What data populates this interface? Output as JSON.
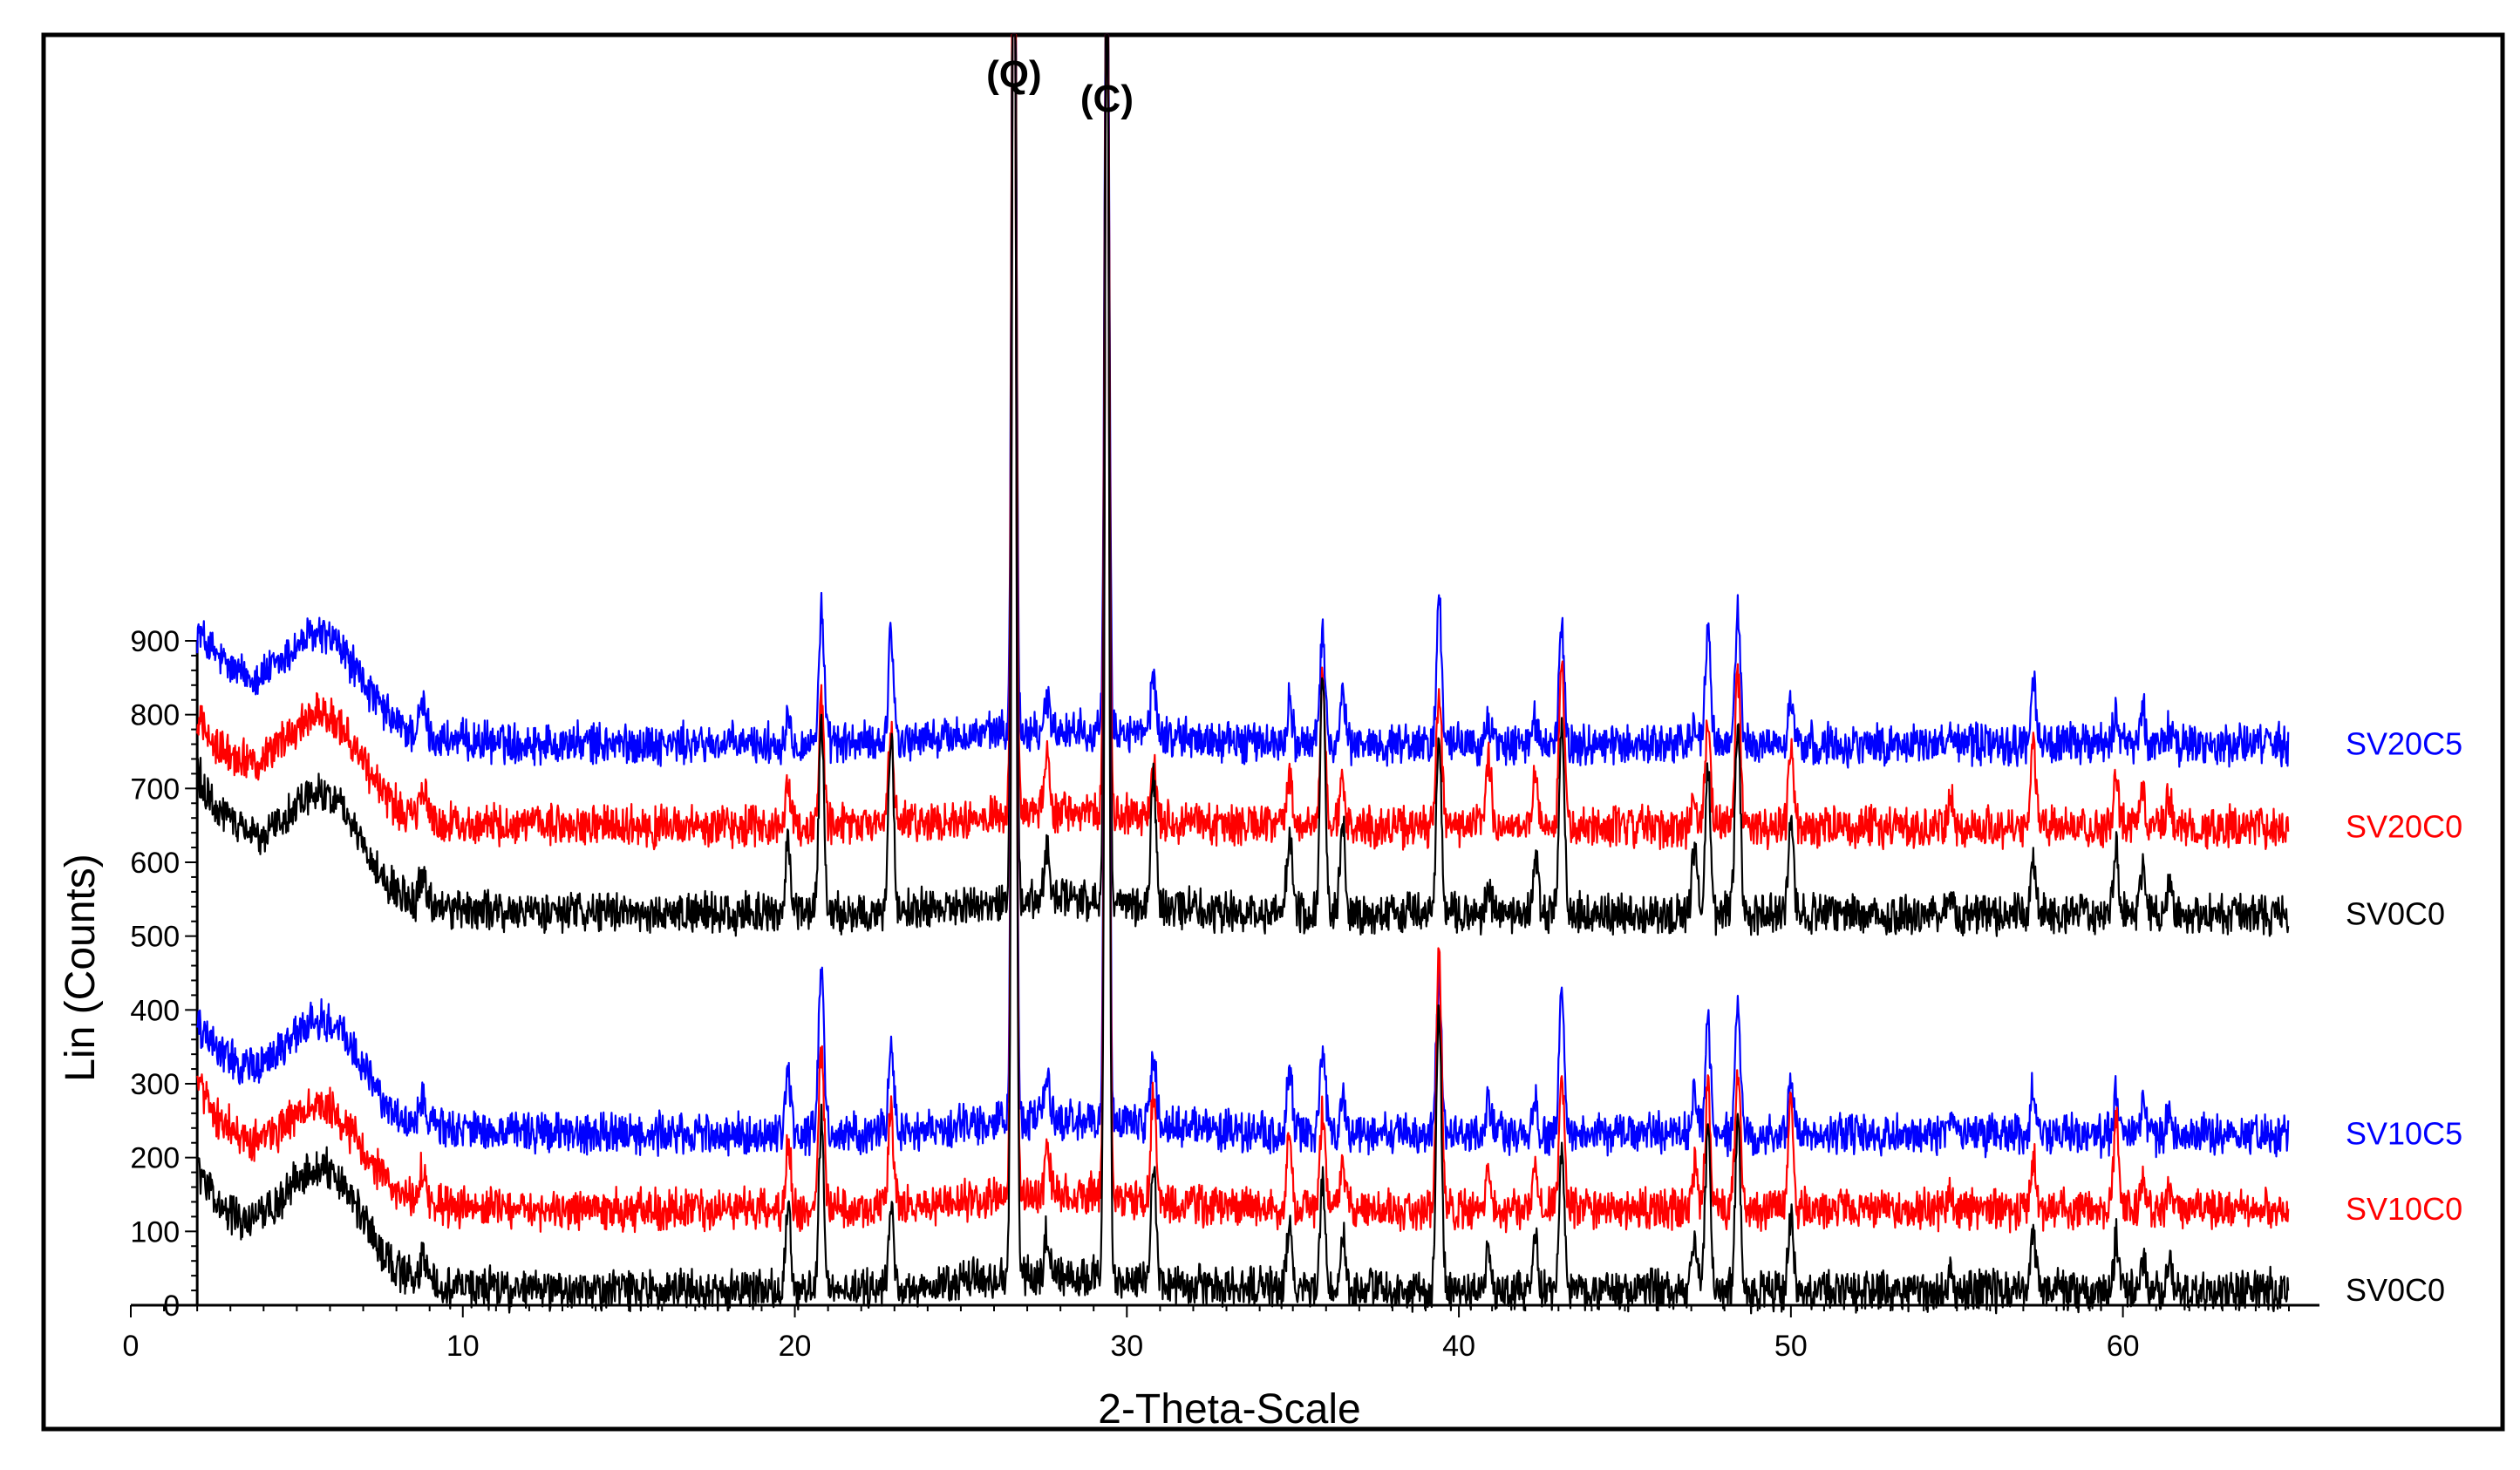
{
  "chart_data": {
    "type": "line",
    "xlabel": "2-Theta-Scale",
    "ylabel": "Lin (Counts)",
    "xlim": [
      0,
      65
    ],
    "ylim": [
      0,
      900
    ],
    "x_ticks": [
      0,
      10,
      20,
      30,
      40,
      50,
      60
    ],
    "y_ticks": [
      0,
      100,
      200,
      300,
      400,
      500,
      600,
      700,
      800,
      900
    ],
    "grid": false,
    "legend": "labels at right end of each trace",
    "annotations": [
      {
        "text": "(Q)",
        "x": 26.6
      },
      {
        "text": "(C)",
        "x": 29.4
      }
    ],
    "peak_positions": [
      19.8,
      20.8,
      22.9,
      26.6,
      27.6,
      29.4,
      30.8,
      34.9,
      35.9,
      36.5,
      39.4,
      40.9,
      42.3,
      43.1,
      47.1,
      47.5,
      48.4,
      50.0,
      54.8,
      57.3,
      59.8,
      60.6,
      61.4
    ],
    "series": [
      {
        "name": "SV20C5",
        "color": "#0000ff",
        "baseline": 760,
        "start": 950,
        "clay_hump": 120,
        "peaks": [
          40,
          180,
          150,
          1450,
          40,
          1300,
          80,
          60,
          150,
          60,
          190,
          30,
          30,
          150,
          30,
          150,
          180,
          60,
          20,
          90,
          40,
          50,
          20
        ]
      },
      {
        "name": "SV20C0",
        "color": "#ff0000",
        "baseline": 648,
        "start": 830,
        "clay_hump": 130,
        "peaks": [
          60,
          160,
          120,
          1650,
          80,
          1400,
          90,
          70,
          210,
          60,
          190,
          90,
          80,
          230,
          40,
          150,
          210,
          100,
          40,
          120,
          60,
          50,
          40
        ]
      },
      {
        "name": "SV0C0",
        "color": "#000000",
        "baseline": 530,
        "start": 760,
        "clay_hump": 130,
        "peaks": [
          100,
          260,
          240,
          1750,
          70,
          1550,
          170,
          110,
          330,
          120,
          230,
          40,
          80,
          250,
          90,
          200,
          260,
          130,
          30,
          70,
          90,
          60,
          40
        ]
      },
      {
        "name": "SV10C5",
        "color": "#0000ff",
        "baseline": 232,
        "start": 420,
        "clay_hump": 130,
        "peaks": [
          70,
          230,
          120,
          1900,
          60,
          1700,
          100,
          80,
          120,
          50,
          210,
          40,
          40,
          190,
          60,
          160,
          180,
          70,
          20,
          60,
          50,
          40,
          30
        ]
      },
      {
        "name": "SV10C0",
        "color": "#ff0000",
        "baseline": 130,
        "start": 330,
        "clay_hump": 110,
        "peaks": [
          90,
          220,
          130,
          2000,
          60,
          1800,
          140,
          90,
          130,
          60,
          350,
          60,
          60,
          170,
          60,
          170,
          200,
          150,
          20,
          70,
          120,
          40,
          30
        ]
      },
      {
        "name": "SV0C0",
        "color": "#000000",
        "baseline": 20,
        "start": 220,
        "clay_hump": 140,
        "peaks": [
          110,
          230,
          110,
          2100,
          60,
          1900,
          160,
          90,
          150,
          80,
          380,
          50,
          60,
          190,
          60,
          220,
          230,
          100,
          20,
          80,
          70,
          40,
          40
        ]
      }
    ]
  }
}
